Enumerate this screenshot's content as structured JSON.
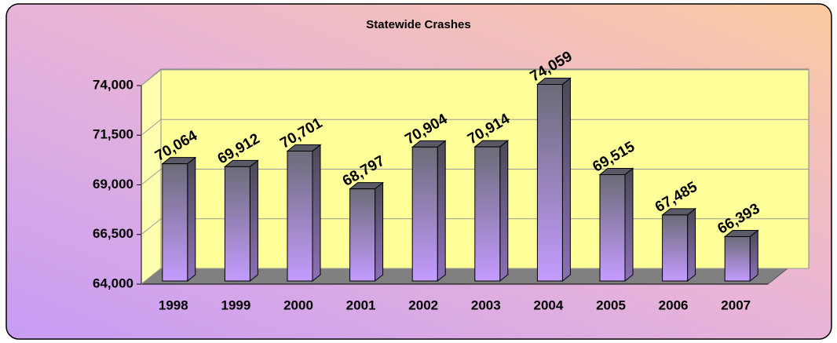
{
  "chart_data": {
    "type": "bar",
    "title": "Statewide Crashes",
    "categories": [
      "1998",
      "1999",
      "2000",
      "2001",
      "2002",
      "2003",
      "2004",
      "2005",
      "2006",
      "2007"
    ],
    "values": [
      70064,
      69912,
      70701,
      68797,
      70904,
      70914,
      74059,
      69515,
      67485,
      66393
    ],
    "value_labels": [
      "70,064",
      "69,912",
      "70,701",
      "68,797",
      "70,904",
      "70,914",
      "74,059",
      "69,515",
      "67,485",
      "66,393"
    ],
    "color": "#b890f0",
    "ylim": [
      64000,
      74000
    ],
    "yticks": [
      {
        "value": 64000,
        "label": "64,000"
      },
      {
        "value": 66500,
        "label": "66,500"
      },
      {
        "value": 69000,
        "label": "69,000"
      },
      {
        "value": 71500,
        "label": "71,500"
      },
      {
        "value": 74000,
        "label": "74,000"
      }
    ],
    "grid": true
  }
}
